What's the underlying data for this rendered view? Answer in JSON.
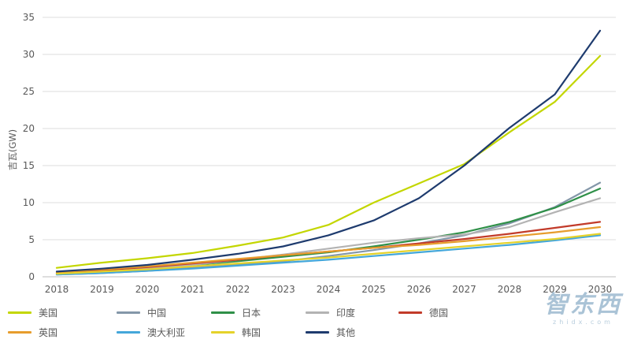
{
  "chart_data": {
    "type": "line",
    "title": "",
    "xlabel": "",
    "ylabel": "吉瓦(GW)",
    "x": [
      2018,
      2019,
      2020,
      2021,
      2022,
      2023,
      2024,
      2025,
      2026,
      2027,
      2028,
      2029,
      2030
    ],
    "ylim": [
      0,
      35
    ],
    "ytick_step": 5,
    "grid": true,
    "legend_position": "bottom",
    "series": [
      {
        "name": "美国",
        "color": "#c3d600",
        "values": [
          1.2,
          1.9,
          2.5,
          3.2,
          4.2,
          5.3,
          7.0,
          10.0,
          12.6,
          15.2,
          19.5,
          23.6,
          29.8
        ]
      },
      {
        "name": "中国",
        "color": "#8497a9",
        "values": [
          0.3,
          0.5,
          0.8,
          1.2,
          1.6,
          2.1,
          2.8,
          3.6,
          4.5,
          5.6,
          7.2,
          9.4,
          12.7
        ]
      },
      {
        "name": "日本",
        "color": "#2f9048",
        "values": [
          0.5,
          0.8,
          1.2,
          1.6,
          2.1,
          2.7,
          3.3,
          4.1,
          5.0,
          6.0,
          7.4,
          9.3,
          11.9
        ]
      },
      {
        "name": "印度",
        "color": "#b3b3b3",
        "values": [
          0.4,
          0.7,
          1.1,
          1.6,
          2.3,
          3.0,
          3.8,
          4.6,
          5.2,
          5.7,
          6.7,
          8.7,
          10.6
        ]
      },
      {
        "name": "德国",
        "color": "#c23b2a",
        "values": [
          0.5,
          0.9,
          1.3,
          1.8,
          2.3,
          2.9,
          3.4,
          3.9,
          4.5,
          5.1,
          5.8,
          6.6,
          7.4
        ]
      },
      {
        "name": "英国",
        "color": "#e79d2d",
        "values": [
          0.6,
          1.0,
          1.4,
          1.9,
          2.4,
          2.9,
          3.4,
          3.9,
          4.3,
          4.8,
          5.4,
          6.0,
          6.7
        ]
      },
      {
        "name": "澳大利亚",
        "color": "#44a7da",
        "values": [
          0.3,
          0.5,
          0.8,
          1.1,
          1.5,
          1.9,
          2.3,
          2.8,
          3.3,
          3.8,
          4.3,
          4.9,
          5.6
        ]
      },
      {
        "name": "韩国",
        "color": "#e5d22a",
        "values": [
          0.4,
          0.7,
          1.0,
          1.4,
          1.8,
          2.2,
          2.6,
          3.1,
          3.6,
          4.1,
          4.6,
          5.1,
          5.8
        ]
      },
      {
        "name": "其他",
        "color": "#1e3b6e",
        "values": [
          0.7,
          1.1,
          1.6,
          2.3,
          3.1,
          4.1,
          5.6,
          7.6,
          10.6,
          15.0,
          20.1,
          24.6,
          33.2
        ]
      }
    ],
    "legend_rows": [
      [
        "美国",
        "中国",
        "日本",
        "印度",
        "德国"
      ],
      [
        "英国",
        "澳大利亚",
        "韩国",
        "其他"
      ]
    ]
  },
  "watermark": {
    "line1": "智东西",
    "line2": "zhidx.com"
  }
}
